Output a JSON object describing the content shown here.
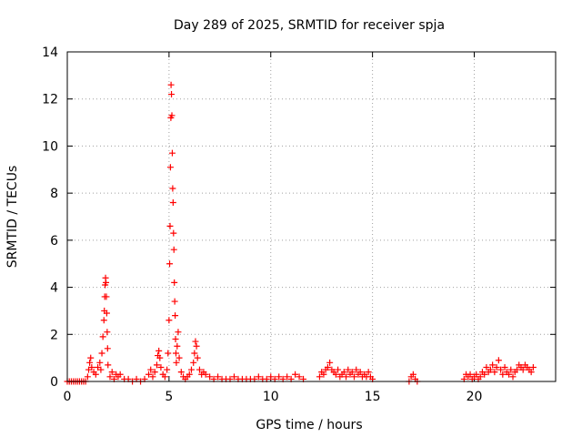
{
  "chart_data": {
    "type": "scatter",
    "title": "Day 289 of 2025, SRMTID for receiver spja",
    "xlabel": "GPS time / hours",
    "ylabel": "SRMTID / TECUs",
    "xlim": [
      0,
      24
    ],
    "ylim": [
      0,
      14
    ],
    "xticks": [
      0,
      5,
      10,
      15,
      20
    ],
    "yticks": [
      0,
      2,
      4,
      6,
      8,
      10,
      12,
      14
    ],
    "xtick_labels": [
      "0",
      "5",
      "10",
      "15",
      "20"
    ],
    "ytick_labels": [
      "0",
      "2",
      "4",
      "6",
      "8",
      "10",
      "12",
      "14"
    ],
    "grid": true,
    "marker": "+",
    "series_color": "#ff0000",
    "series": [
      {
        "name": "",
        "points": [
          [
            0.0,
            0.0
          ],
          [
            0.1,
            0.0
          ],
          [
            0.2,
            0.0
          ],
          [
            0.3,
            0.0
          ],
          [
            0.4,
            0.0
          ],
          [
            0.5,
            0.0
          ],
          [
            0.6,
            0.0
          ],
          [
            0.7,
            0.0
          ],
          [
            0.8,
            0.0
          ],
          [
            0.9,
            0.0
          ],
          [
            1.0,
            0.2
          ],
          [
            1.05,
            0.5
          ],
          [
            1.1,
            0.8
          ],
          [
            1.15,
            1.0
          ],
          [
            1.2,
            0.6
          ],
          [
            1.3,
            0.4
          ],
          [
            1.4,
            0.3
          ],
          [
            1.5,
            0.6
          ],
          [
            1.6,
            0.8
          ],
          [
            1.65,
            0.5
          ],
          [
            1.7,
            1.2
          ],
          [
            1.75,
            1.9
          ],
          [
            1.8,
            2.6
          ],
          [
            1.82,
            3.0
          ],
          [
            1.84,
            3.6
          ],
          [
            1.86,
            4.1
          ],
          [
            1.88,
            4.4
          ],
          [
            1.9,
            4.2
          ],
          [
            1.92,
            3.6
          ],
          [
            1.94,
            2.9
          ],
          [
            1.96,
            2.1
          ],
          [
            1.98,
            1.4
          ],
          [
            2.0,
            0.7
          ],
          [
            2.1,
            0.2
          ],
          [
            2.2,
            0.4
          ],
          [
            2.3,
            0.1
          ],
          [
            2.4,
            0.3
          ],
          [
            2.5,
            0.2
          ],
          [
            2.6,
            0.3
          ],
          [
            2.8,
            0.1
          ],
          [
            3.0,
            0.1
          ],
          [
            3.2,
            0.0
          ],
          [
            3.4,
            0.1
          ],
          [
            3.6,
            0.0
          ],
          [
            3.8,
            0.1
          ],
          [
            4.0,
            0.3
          ],
          [
            4.1,
            0.5
          ],
          [
            4.2,
            0.2
          ],
          [
            4.3,
            0.4
          ],
          [
            4.4,
            0.7
          ],
          [
            4.45,
            1.1
          ],
          [
            4.5,
            1.3
          ],
          [
            4.55,
            1.0
          ],
          [
            4.6,
            0.6
          ],
          [
            4.7,
            0.3
          ],
          [
            4.8,
            0.2
          ],
          [
            4.9,
            0.5
          ],
          [
            4.95,
            1.2
          ],
          [
            5.0,
            2.6
          ],
          [
            5.03,
            5.0
          ],
          [
            5.05,
            6.6
          ],
          [
            5.07,
            9.1
          ],
          [
            5.09,
            11.2
          ],
          [
            5.1,
            12.6
          ],
          [
            5.12,
            12.2
          ],
          [
            5.14,
            11.3
          ],
          [
            5.16,
            9.7
          ],
          [
            5.18,
            8.2
          ],
          [
            5.2,
            7.6
          ],
          [
            5.22,
            6.3
          ],
          [
            5.24,
            5.6
          ],
          [
            5.26,
            4.2
          ],
          [
            5.28,
            3.4
          ],
          [
            5.3,
            2.8
          ],
          [
            5.32,
            1.8
          ],
          [
            5.34,
            1.2
          ],
          [
            5.36,
            0.8
          ],
          [
            5.4,
            1.5
          ],
          [
            5.45,
            2.1
          ],
          [
            5.5,
            1.0
          ],
          [
            5.6,
            0.4
          ],
          [
            5.7,
            0.2
          ],
          [
            5.8,
            0.1
          ],
          [
            5.9,
            0.2
          ],
          [
            6.0,
            0.3
          ],
          [
            6.1,
            0.5
          ],
          [
            6.2,
            0.8
          ],
          [
            6.25,
            1.2
          ],
          [
            6.3,
            1.7
          ],
          [
            6.35,
            1.5
          ],
          [
            6.4,
            1.0
          ],
          [
            6.5,
            0.5
          ],
          [
            6.6,
            0.3
          ],
          [
            6.7,
            0.4
          ],
          [
            6.8,
            0.3
          ],
          [
            7.0,
            0.2
          ],
          [
            7.2,
            0.1
          ],
          [
            7.4,
            0.2
          ],
          [
            7.6,
            0.1
          ],
          [
            7.8,
            0.1
          ],
          [
            8.0,
            0.1
          ],
          [
            8.2,
            0.2
          ],
          [
            8.4,
            0.1
          ],
          [
            8.6,
            0.1
          ],
          [
            8.8,
            0.1
          ],
          [
            9.0,
            0.1
          ],
          [
            9.2,
            0.1
          ],
          [
            9.4,
            0.2
          ],
          [
            9.6,
            0.1
          ],
          [
            9.8,
            0.1
          ],
          [
            10.0,
            0.2
          ],
          [
            10.2,
            0.1
          ],
          [
            10.4,
            0.2
          ],
          [
            10.6,
            0.1
          ],
          [
            10.8,
            0.2
          ],
          [
            11.0,
            0.1
          ],
          [
            11.2,
            0.3
          ],
          [
            11.4,
            0.2
          ],
          [
            11.6,
            0.1
          ],
          [
            12.4,
            0.2
          ],
          [
            12.5,
            0.4
          ],
          [
            12.6,
            0.3
          ],
          [
            12.7,
            0.5
          ],
          [
            12.8,
            0.6
          ],
          [
            12.9,
            0.8
          ],
          [
            13.0,
            0.5
          ],
          [
            13.1,
            0.4
          ],
          [
            13.2,
            0.3
          ],
          [
            13.3,
            0.5
          ],
          [
            13.4,
            0.2
          ],
          [
            13.5,
            0.3
          ],
          [
            13.6,
            0.4
          ],
          [
            13.7,
            0.2
          ],
          [
            13.8,
            0.5
          ],
          [
            13.9,
            0.3
          ],
          [
            14.0,
            0.4
          ],
          [
            14.1,
            0.2
          ],
          [
            14.2,
            0.5
          ],
          [
            14.3,
            0.3
          ],
          [
            14.4,
            0.4
          ],
          [
            14.5,
            0.2
          ],
          [
            14.6,
            0.3
          ],
          [
            14.7,
            0.2
          ],
          [
            14.8,
            0.4
          ],
          [
            14.9,
            0.2
          ],
          [
            15.0,
            0.1
          ],
          [
            16.8,
            0.0
          ],
          [
            16.9,
            0.2
          ],
          [
            17.0,
            0.3
          ],
          [
            17.1,
            0.1
          ],
          [
            17.2,
            0.0
          ],
          [
            19.5,
            0.1
          ],
          [
            19.6,
            0.3
          ],
          [
            19.7,
            0.2
          ],
          [
            19.8,
            0.3
          ],
          [
            19.9,
            0.1
          ],
          [
            20.0,
            0.2
          ],
          [
            20.1,
            0.3
          ],
          [
            20.2,
            0.1
          ],
          [
            20.3,
            0.2
          ],
          [
            20.4,
            0.4
          ],
          [
            20.5,
            0.3
          ],
          [
            20.6,
            0.6
          ],
          [
            20.7,
            0.4
          ],
          [
            20.8,
            0.5
          ],
          [
            20.9,
            0.7
          ],
          [
            21.0,
            0.4
          ],
          [
            21.1,
            0.6
          ],
          [
            21.2,
            0.9
          ],
          [
            21.3,
            0.5
          ],
          [
            21.4,
            0.3
          ],
          [
            21.5,
            0.6
          ],
          [
            21.6,
            0.4
          ],
          [
            21.7,
            0.3
          ],
          [
            21.8,
            0.5
          ],
          [
            21.9,
            0.2
          ],
          [
            22.0,
            0.4
          ],
          [
            22.1,
            0.5
          ],
          [
            22.2,
            0.7
          ],
          [
            22.3,
            0.6
          ],
          [
            22.4,
            0.5
          ],
          [
            22.5,
            0.7
          ],
          [
            22.6,
            0.6
          ],
          [
            22.7,
            0.5
          ],
          [
            22.8,
            0.4
          ],
          [
            22.9,
            0.6
          ]
        ]
      }
    ]
  }
}
